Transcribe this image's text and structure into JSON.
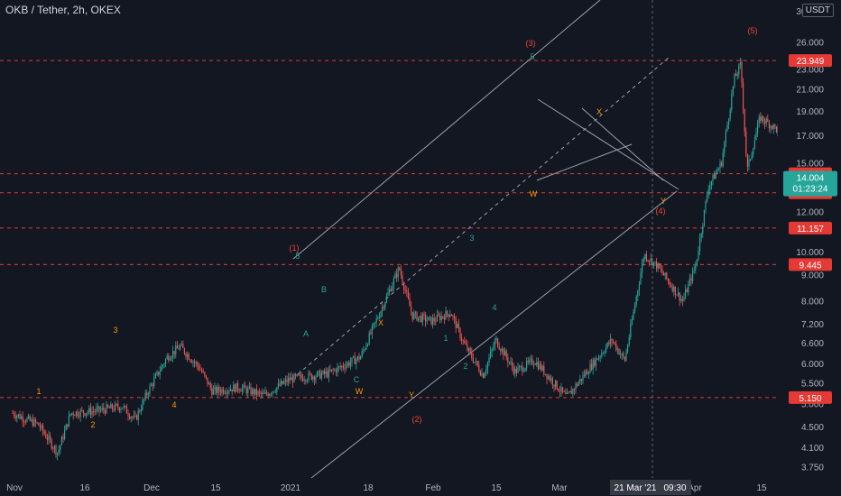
{
  "header": {
    "symbol_title": "OKB / Tether, 2h, OKEX",
    "currency_badge": "USDT"
  },
  "colors": {
    "background": "#131722",
    "up": "#26a69a",
    "down": "#ef5350",
    "level_line": "#e53935",
    "channel": "#9aa0ad",
    "wave_primary": "#f44336",
    "wave_minor": "#26a69a",
    "wave_sub": "#ff9800"
  },
  "chart_data": {
    "type": "candlestick",
    "title": "OKB / Tether, 2h, OKEX",
    "y_scale": "log",
    "y_ticks": [
      "3.750",
      "4.100",
      "4.500",
      "5.000",
      "5.500",
      "6.000",
      "6.600",
      "7.200",
      "8.000",
      "9.000",
      "10.000",
      "12.000",
      "15.000",
      "17.000",
      "19.000",
      "21.000",
      "23.000",
      "26.000",
      "30.000"
    ],
    "x_ticks": [
      "Nov",
      "16",
      "Dec",
      "15",
      "2021",
      "18",
      "Feb",
      "15",
      "Mar",
      "15",
      "Apr",
      "15"
    ],
    "price_path": [
      [
        "2020-11-01",
        4.8
      ],
      [
        "2020-11-05",
        4.55
      ],
      [
        "2020-11-08",
        4.0
      ],
      [
        "2020-11-10",
        4.8
      ],
      [
        "2020-11-14",
        4.85
      ],
      [
        "2020-11-18",
        4.95
      ],
      [
        "2020-11-20",
        4.65
      ],
      [
        "2020-11-22",
        5.3
      ],
      [
        "2020-11-25",
        6.2
      ],
      [
        "2020-11-27",
        6.5
      ],
      [
        "2020-11-30",
        5.9
      ],
      [
        "2020-12-02",
        5.3
      ],
      [
        "2020-12-06",
        5.4
      ],
      [
        "2020-12-10",
        5.2
      ],
      [
        "2020-12-14",
        5.6
      ],
      [
        "2020-12-20",
        5.75
      ],
      [
        "2020-12-25",
        6.2
      ],
      [
        "2020-12-28",
        7.6
      ],
      [
        "2020-12-31",
        9.3
      ],
      [
        "2021-01-02",
        7.5
      ],
      [
        "2021-01-05",
        7.3
      ],
      [
        "2021-01-08",
        7.6
      ],
      [
        "2021-01-10",
        6.6
      ],
      [
        "2021-01-13",
        5.7
      ],
      [
        "2021-01-15",
        6.7
      ],
      [
        "2021-01-18",
        5.8
      ],
      [
        "2021-01-21",
        6.1
      ],
      [
        "2021-01-26",
        5.15
      ],
      [
        "2021-01-30",
        6.0
      ],
      [
        "2021-02-02",
        6.7
      ],
      [
        "2021-02-04",
        6.1
      ],
      [
        "2021-02-07",
        9.9
      ],
      [
        "2021-02-09",
        9.4
      ],
      [
        "2021-02-13",
        8.0
      ],
      [
        "2021-02-15",
        9.4
      ],
      [
        "2021-02-17",
        13.5
      ],
      [
        "2021-02-19",
        15.0
      ],
      [
        "2021-02-21",
        22.0
      ],
      [
        "2021-02-22",
        23.5
      ],
      [
        "2021-02-23",
        14.5
      ],
      [
        "2021-02-25",
        18.5
      ],
      [
        "2021-03-01",
        17.0
      ],
      [
        "2021-03-04",
        18.0
      ],
      [
        "2021-03-08",
        17.0
      ],
      [
        "2021-03-10",
        18.0
      ],
      [
        "2021-03-13",
        15.5
      ],
      [
        "2021-03-18",
        14.2
      ],
      [
        "2021-03-21",
        13.2
      ],
      [
        "2021-03-22",
        14.3
      ]
    ],
    "last_price": "14.004",
    "countdown": "01:23:24",
    "horizontal_levels": [
      "23.949",
      "14.295",
      "13.107",
      "11.157",
      "9.445",
      "5.150"
    ],
    "crosshair_labels": {
      "date": "21 Mar '21",
      "time": "09:30"
    },
    "projection": {
      "from": [
        "2021-03-24",
        13.6
      ],
      "to": [
        "2021-04-14",
        27.8
      ]
    },
    "wave_labels": {
      "primary": [
        "(1)",
        "(2)",
        "(3)",
        "(4)",
        "(5)"
      ],
      "minor": [
        "5",
        "A",
        "B",
        "C",
        "3",
        "1",
        "2",
        "4",
        "5"
      ],
      "sub": [
        "1",
        "2",
        "3",
        "4",
        "X",
        "W",
        "Y",
        "W",
        "X",
        "Y"
      ]
    }
  }
}
